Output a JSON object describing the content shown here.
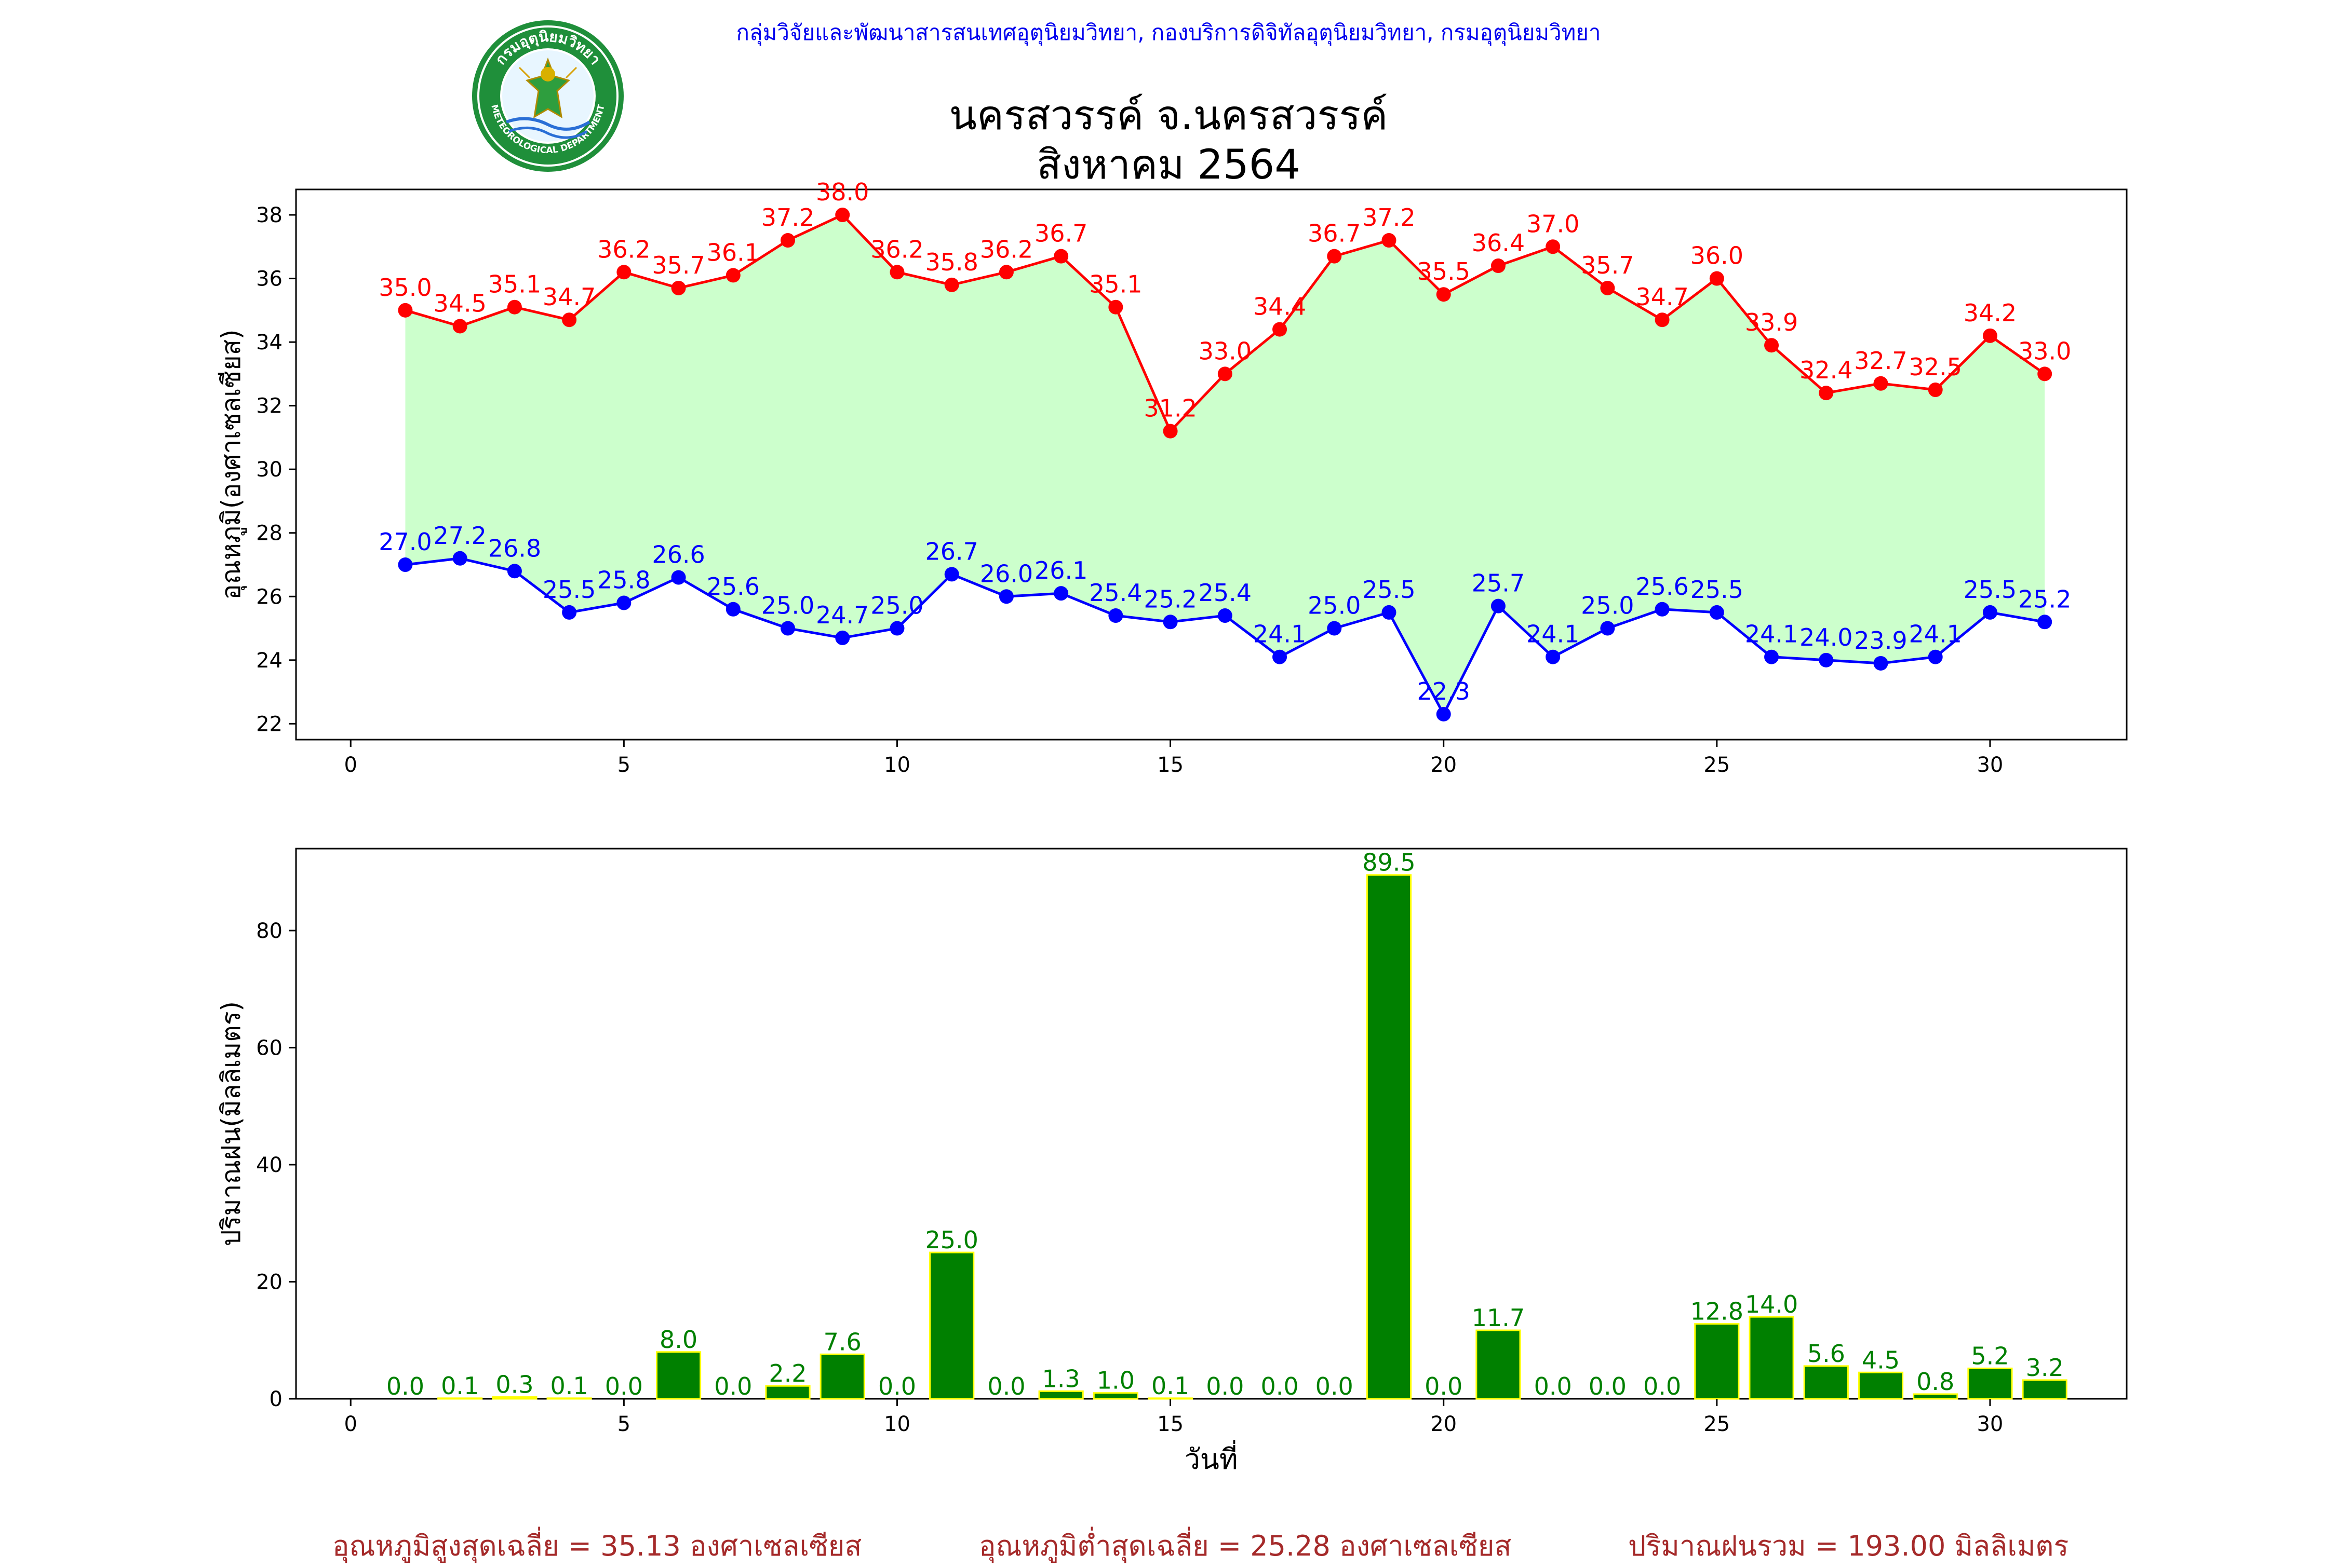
{
  "header": {
    "agency": "กลุ่มวิจัยและพัฒนาสารสนเทศอุตุนิยมวิทยา, กองบริการดิจิทัลอุตุนิยมวิทยา, กรมอุตุนิยมวิทยา",
    "title_line1": "นครสวรรค์  จ.นครสวรรค์",
    "title_line2": "สิงหาคม 2564",
    "logo_text_top": "กรมอุตุนิยมวิทยา",
    "logo_text_bottom": "METEOROLOGICAL DEPARTMENT"
  },
  "chart_data": [
    {
      "type": "line",
      "ylabel": "อุณหภูมิ(องศาเซลเซียส)",
      "xlim": [
        -1,
        32.5
      ],
      "ylim": [
        21.5,
        38.8
      ],
      "xticks": [
        0,
        5,
        10,
        15,
        20,
        25,
        30
      ],
      "yticks": [
        22,
        24,
        26,
        28,
        30,
        32,
        34,
        36,
        38
      ],
      "x": [
        1,
        2,
        3,
        4,
        5,
        6,
        7,
        8,
        9,
        10,
        11,
        12,
        13,
        14,
        15,
        16,
        17,
        18,
        19,
        20,
        21,
        22,
        23,
        24,
        25,
        26,
        27,
        28,
        29,
        30,
        31
      ],
      "series": [
        {
          "color": "#ff0000",
          "values": [
            35.0,
            34.5,
            35.1,
            34.7,
            36.2,
            35.7,
            36.1,
            37.2,
            38.0,
            36.2,
            35.8,
            36.2,
            36.7,
            35.1,
            31.2,
            33.0,
            34.4,
            36.7,
            37.2,
            35.5,
            36.4,
            37.0,
            35.7,
            34.7,
            36.0,
            33.9,
            32.4,
            32.7,
            32.5,
            34.2,
            33.0
          ]
        },
        {
          "color": "#0000ff",
          "values": [
            27.0,
            27.2,
            26.8,
            25.5,
            25.8,
            26.6,
            25.6,
            25.0,
            24.7,
            25.0,
            26.7,
            26.0,
            26.1,
            25.4,
            25.2,
            25.4,
            24.1,
            25.0,
            25.5,
            22.3,
            25.7,
            24.1,
            25.0,
            25.6,
            25.5,
            24.1,
            24.0,
            23.9,
            24.1,
            25.5,
            25.2
          ]
        }
      ],
      "fill_color": "#ccffcc"
    },
    {
      "type": "bar",
      "ylabel": "ปริมาณฝน(มิลลิเมตร)",
      "xlabel": "วันที่",
      "xlim": [
        -1,
        32.5
      ],
      "ylim": [
        0,
        94
      ],
      "xticks": [
        0,
        5,
        10,
        15,
        20,
        25,
        30
      ],
      "yticks": [
        0,
        20,
        40,
        60,
        80
      ],
      "x": [
        1,
        2,
        3,
        4,
        5,
        6,
        7,
        8,
        9,
        10,
        11,
        12,
        13,
        14,
        15,
        16,
        17,
        18,
        19,
        20,
        21,
        22,
        23,
        24,
        25,
        26,
        27,
        28,
        29,
        30,
        31
      ],
      "values": [
        0.0,
        0.1,
        0.3,
        0.1,
        0.0,
        8.0,
        0.0,
        2.2,
        7.6,
        0.0,
        25.0,
        0.0,
        1.3,
        1.0,
        0.1,
        0.0,
        0.0,
        0.0,
        89.5,
        0.0,
        11.7,
        0.0,
        0.0,
        0.0,
        12.8,
        14.0,
        5.6,
        4.5,
        0.8,
        5.2,
        3.2
      ],
      "bar_color": "#008000",
      "edge_color": "#ffff00",
      "label_color": "#008000"
    }
  ],
  "footer": {
    "avg_max": "อุณหภูมิสูงสุดเฉลี่ย = 35.13 องศาเซลเซียส",
    "avg_min": "อุณหภูมิต่ำสุดเฉลี่ย = 25.28 องศาเซลเซียส",
    "total_rain": "ปริมาณฝนรวม = 193.00 มิลลิเมตร"
  }
}
